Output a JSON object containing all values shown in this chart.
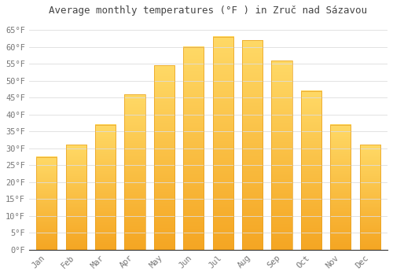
{
  "title": "Average monthly temperatures (°F ) in Zruč nad Sázavou",
  "months": [
    "Jan",
    "Feb",
    "Mar",
    "Apr",
    "May",
    "Jun",
    "Jul",
    "Aug",
    "Sep",
    "Oct",
    "Nov",
    "Dec"
  ],
  "values": [
    27.5,
    31.0,
    37.0,
    46.0,
    54.5,
    60.0,
    63.0,
    62.0,
    56.0,
    47.0,
    37.0,
    31.0
  ],
  "bar_color_bottom": "#F5A623",
  "bar_color_top": "#FFD966",
  "bar_edge_color": "#E8A020",
  "background_color": "#ffffff",
  "grid_color": "#dddddd",
  "ylim": [
    0,
    68
  ],
  "yticks": [
    0,
    5,
    10,
    15,
    20,
    25,
    30,
    35,
    40,
    45,
    50,
    55,
    60,
    65
  ],
  "title_fontsize": 9,
  "tick_fontsize": 7.5,
  "font_family": "monospace",
  "tick_color": "#777777",
  "bar_width": 0.7
}
